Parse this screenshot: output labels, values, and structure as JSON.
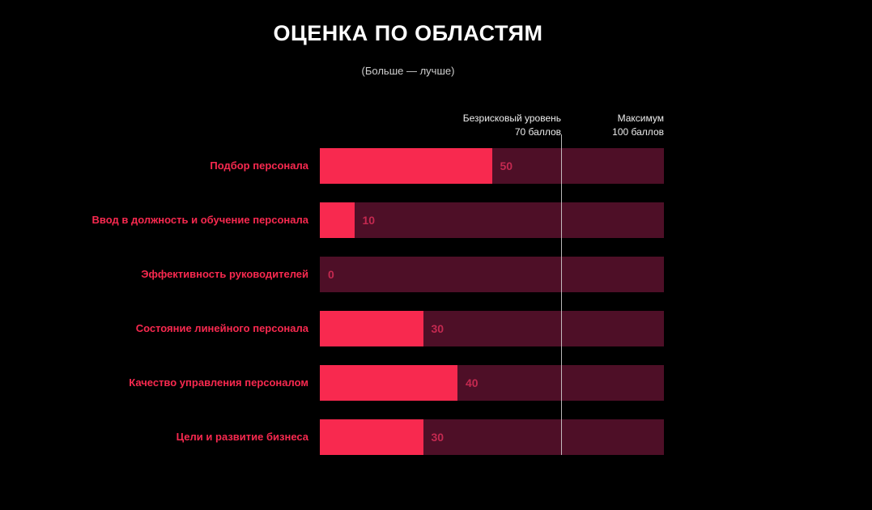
{
  "title": "ОЦЕНКА ПО ОБЛАСТЯМ",
  "subtitle": "(Больше — лучше)",
  "annotations": {
    "risk": {
      "line1": "Безрисковый уровень",
      "line2": "70 баллов"
    },
    "max": {
      "line1": "Максимум",
      "line2": "100 баллов"
    }
  },
  "chart_data": {
    "type": "bar",
    "orientation": "horizontal",
    "title": "ОЦЕНКА ПО ОБЛАСТЯМ",
    "subtitle": "(Больше — лучше)",
    "categories": [
      "Подбор персонала",
      "Ввод в должность и обучение персонала",
      "Эффективность руководителей",
      "Состояние линейного персонала",
      "Качество управления персоналом",
      "Цели и развитие бизнеса"
    ],
    "values": [
      50,
      10,
      0,
      30,
      40,
      30
    ],
    "xlim": [
      0,
      100
    ],
    "risk_threshold": 70,
    "max_value": 100,
    "legend": "none",
    "grid": false,
    "colors": {
      "background": "#000000",
      "bar": "#f8294f",
      "bar_track": "#4e0f27",
      "value_label": "#c42950",
      "category_label": "#f8294f",
      "threshold_line": "#d8d8d8",
      "title": "#ffffff",
      "subtitle": "#cfcfcf"
    }
  }
}
